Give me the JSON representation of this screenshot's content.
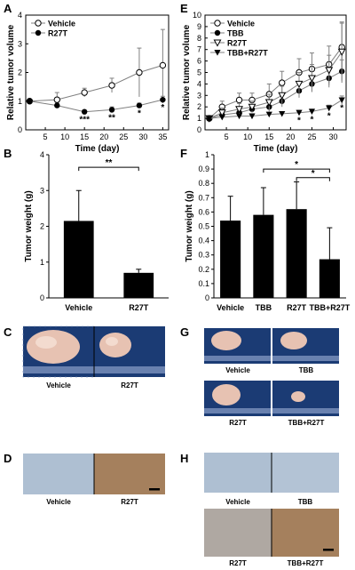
{
  "panels": {
    "A": "A",
    "B": "B",
    "C": "C",
    "D": "D",
    "E": "E",
    "F": "F",
    "G": "G",
    "H": "H"
  },
  "colors": {
    "bar_fill": "#000000",
    "open_marker": "#ffffff",
    "line": "#808080",
    "tissue": "#e7c2b2",
    "tissue_bright": "#f1d2c2",
    "ruler_bg": "#1b3b74",
    "ihc_light": "#aebfd2",
    "ihc_brown": "#b48c66"
  },
  "chart_data": [
    {
      "panel": "A",
      "type": "line",
      "ylabel": "Relative tumor volume",
      "xlabel": "Time (day)",
      "xticks": [
        5,
        10,
        15,
        20,
        25,
        30,
        35
      ],
      "yticks": [
        0,
        1,
        2,
        3,
        4
      ],
      "xlim": [
        0,
        36.5
      ],
      "ylim": [
        0,
        4
      ],
      "legend_position": "top-left",
      "series": [
        {
          "name": "Vehicle",
          "marker": "open-circle",
          "x": [
            1,
            8,
            15,
            22,
            29,
            35
          ],
          "y": [
            1.0,
            1.05,
            1.3,
            1.55,
            2.0,
            2.25
          ],
          "err": [
            0.05,
            0.25,
            0.15,
            0.25,
            0.85,
            1.25
          ]
        },
        {
          "name": "R27T",
          "marker": "filled-circle",
          "x": [
            1,
            8,
            15,
            22,
            29,
            35
          ],
          "y": [
            1.0,
            0.85,
            0.63,
            0.7,
            0.85,
            1.05
          ],
          "err": [
            0.05,
            0.08,
            0.05,
            0.1,
            0.08,
            0.12
          ]
        }
      ],
      "annotations": [
        {
          "x": 15,
          "y": 0.63,
          "text": "***"
        },
        {
          "x": 22,
          "y": 0.7,
          "text": "**"
        },
        {
          "x": 29,
          "y": 0.85,
          "text": "*"
        },
        {
          "x": 35,
          "y": 1.05,
          "text": "*"
        }
      ]
    },
    {
      "panel": "E",
      "type": "line",
      "ylabel": "Relative tumor volume",
      "xlabel": "Time (day)",
      "xticks": [
        5,
        10,
        15,
        20,
        25,
        30
      ],
      "yticks": [
        0,
        1,
        2,
        3,
        4,
        5,
        6,
        7,
        8,
        9,
        10
      ],
      "xlim": [
        0,
        33
      ],
      "ylim": [
        0,
        10
      ],
      "legend_position": "top-left",
      "series": [
        {
          "name": "Vehicle",
          "marker": "open-circle",
          "x": [
            1,
            4,
            8,
            11,
            15,
            18,
            22,
            25,
            29,
            32
          ],
          "y": [
            1.0,
            2.0,
            2.6,
            2.6,
            3.1,
            4.1,
            5.0,
            5.3,
            5.7,
            7.2
          ],
          "err": [
            0.1,
            0.5,
            0.6,
            0.6,
            0.9,
            1.0,
            1.2,
            1.4,
            1.6,
            2.2
          ]
        },
        {
          "name": "TBB",
          "marker": "filled-circle",
          "x": [
            1,
            4,
            8,
            11,
            15,
            18,
            22,
            25,
            29,
            32
          ],
          "y": [
            1.0,
            1.3,
            1.5,
            1.8,
            2.0,
            2.5,
            3.4,
            4.0,
            4.5,
            5.1
          ],
          "err": [
            0.1,
            0.3,
            0.3,
            0.3,
            0.4,
            0.5,
            0.6,
            0.7,
            0.8,
            1.0
          ]
        },
        {
          "name": "R27T",
          "marker": "open-triangle-down",
          "x": [
            1,
            4,
            8,
            11,
            15,
            18,
            22,
            25,
            29,
            32
          ],
          "y": [
            1.0,
            1.5,
            1.8,
            2.0,
            2.4,
            3.0,
            4.0,
            4.5,
            5.2,
            6.8
          ],
          "err": [
            0.1,
            0.4,
            0.5,
            0.5,
            0.7,
            0.8,
            1.0,
            1.2,
            1.3,
            2.5
          ]
        },
        {
          "name": "TBB+R27T",
          "marker": "filled-triangle-down",
          "x": [
            1,
            4,
            8,
            11,
            15,
            18,
            22,
            25,
            29,
            32
          ],
          "y": [
            1.0,
            1.1,
            1.2,
            1.2,
            1.35,
            1.4,
            1.5,
            1.6,
            1.9,
            2.6
          ],
          "err": [
            0.05,
            0.1,
            0.1,
            0.1,
            0.15,
            0.15,
            0.2,
            0.2,
            0.25,
            0.35
          ]
        }
      ],
      "annotations": [
        {
          "x": 22,
          "y": 1.5,
          "text": "*"
        },
        {
          "x": 25,
          "y": 1.6,
          "text": "*"
        },
        {
          "x": 29,
          "y": 1.9,
          "text": "*"
        },
        {
          "x": 32,
          "y": 2.6,
          "text": "*"
        }
      ]
    },
    {
      "panel": "B",
      "type": "bar",
      "ylabel": "Tumor weight (g)",
      "categories": [
        "Vehicle",
        "R27T"
      ],
      "values": [
        2.15,
        0.7
      ],
      "err": [
        0.85,
        0.1
      ],
      "yticks": [
        0,
        1,
        2,
        3,
        4
      ],
      "ylim": [
        0,
        4
      ],
      "significance": [
        {
          "from": 0,
          "to": 1,
          "text": "**"
        }
      ]
    },
    {
      "panel": "F",
      "type": "bar",
      "ylabel": "Tumor weight (g)",
      "categories": [
        "Vehicle",
        "TBB",
        "R27T",
        "TBB+R27T"
      ],
      "values": [
        0.54,
        0.58,
        0.62,
        0.27
      ],
      "err": [
        0.17,
        0.19,
        0.19,
        0.22
      ],
      "yticks": [
        0,
        0.1,
        0.2,
        0.3,
        0.4,
        0.5,
        0.6,
        0.7,
        0.8,
        0.9,
        1
      ],
      "ylim": [
        0,
        1
      ],
      "significance": [
        {
          "from": 1,
          "to": 3,
          "text": "*"
        },
        {
          "from": 2,
          "to": 3,
          "text": "*"
        }
      ]
    }
  ],
  "photos": {
    "C": [
      "Vehicle",
      "R27T"
    ],
    "D": [
      "Vehicle",
      "R27T"
    ],
    "G": [
      "Vehicle",
      "TBB",
      "R27T",
      "TBB+R27T"
    ],
    "H": [
      "Vehicle",
      "TBB",
      "R27T",
      "TBB+R27T"
    ]
  }
}
